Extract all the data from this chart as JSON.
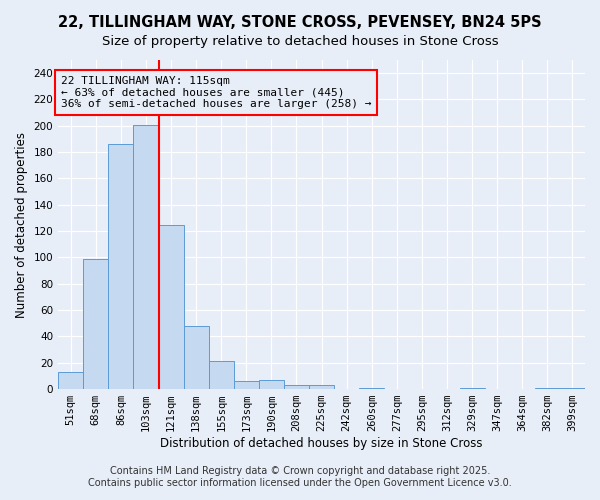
{
  "title": "22, TILLINGHAM WAY, STONE CROSS, PEVENSEY, BN24 5PS",
  "subtitle": "Size of property relative to detached houses in Stone Cross",
  "xlabel": "Distribution of detached houses by size in Stone Cross",
  "ylabel": "Number of detached properties",
  "categories": [
    "51sqm",
    "68sqm",
    "86sqm",
    "103sqm",
    "121sqm",
    "138sqm",
    "155sqm",
    "173sqm",
    "190sqm",
    "208sqm",
    "225sqm",
    "242sqm",
    "260sqm",
    "277sqm",
    "295sqm",
    "312sqm",
    "329sqm",
    "347sqm",
    "364sqm",
    "382sqm",
    "399sqm"
  ],
  "values": [
    13,
    99,
    186,
    201,
    125,
    48,
    21,
    6,
    7,
    3,
    3,
    0,
    1,
    0,
    0,
    0,
    1,
    0,
    0,
    1,
    1
  ],
  "bar_color": "#c5d9f0",
  "bar_edge_color": "#5b9bd5",
  "annotation_title": "22 TILLINGHAM WAY: 115sqm",
  "annotation_line1": "← 63% of detached houses are smaller (445)",
  "annotation_line2": "36% of semi-detached houses are larger (258) →",
  "ylim": [
    0,
    250
  ],
  "yticks": [
    0,
    20,
    40,
    60,
    80,
    100,
    120,
    140,
    160,
    180,
    200,
    220,
    240
  ],
  "footnote1": "Contains HM Land Registry data © Crown copyright and database right 2025.",
  "footnote2": "Contains public sector information licensed under the Open Government Licence v3.0.",
  "background_color": "#e8eef8",
  "grid_color": "#ffffff",
  "title_fontsize": 10.5,
  "subtitle_fontsize": 9.5,
  "axis_label_fontsize": 8.5,
  "tick_fontsize": 7.5,
  "annotation_fontsize": 8,
  "footnote_fontsize": 7
}
